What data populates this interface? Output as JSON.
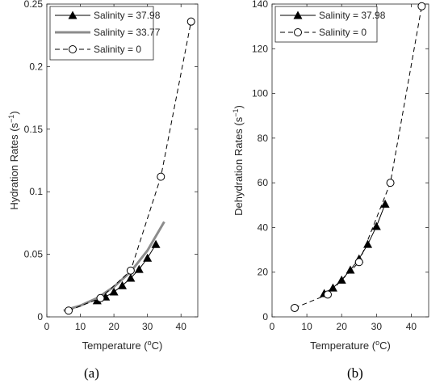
{
  "panel_labels": [
    "(a)",
    "(b)"
  ],
  "chart_data": [
    {
      "type": "line",
      "xlabel": "Temperature (°C)",
      "xlabel_base": "Temperature (",
      "xlabel_sup": "o",
      "xlabel_end": "C)",
      "ylabel": "Hydration Rates (s⁻¹)",
      "ylabel_base": "Hydration Rates (s",
      "ylabel_sup": "−1",
      "ylabel_end": ")",
      "xlim": [
        0,
        45
      ],
      "ylim": [
        0,
        0.25
      ],
      "xticks": [
        0,
        10,
        20,
        30,
        40
      ],
      "yticks": [
        0,
        0.05,
        0.1,
        0.15,
        0.2,
        0.25
      ],
      "ytick_labels": [
        "0",
        "0.05",
        "0.1",
        "0.15",
        "0.2",
        "0.25"
      ],
      "grid": false,
      "legend_position": "top-left",
      "series": [
        {
          "name": "Salinity = 37.98",
          "style": "solid-triangle",
          "x": [
            15,
            17.5,
            20,
            22.5,
            25,
            27.5,
            30,
            32.5
          ],
          "y": [
            0.013,
            0.016,
            0.02,
            0.025,
            0.031,
            0.038,
            0.047,
            0.058
          ]
        },
        {
          "name": "Salinity = 33.77",
          "style": "thick-gray",
          "x": [
            5,
            10,
            15,
            20,
            25,
            30,
            35
          ],
          "y": [
            0.005,
            0.009,
            0.015,
            0.024,
            0.036,
            0.053,
            0.076
          ]
        },
        {
          "name": "Salinity = 0",
          "style": "dashed-circle",
          "x": [
            6.5,
            16,
            25,
            34,
            43
          ],
          "y": [
            0.005,
            0.015,
            0.037,
            0.112,
            0.236
          ]
        }
      ]
    },
    {
      "type": "line",
      "xlabel": "Temperature (°C)",
      "xlabel_base": "Temperature (",
      "xlabel_sup": "o",
      "xlabel_end": "C)",
      "ylabel": "Dehydration Rates (s⁻¹)",
      "ylabel_base": "Dehydration Rates (s",
      "ylabel_sup": "−1",
      "ylabel_end": ")",
      "xlim": [
        0,
        45
      ],
      "ylim": [
        0,
        140
      ],
      "xticks": [
        0,
        10,
        20,
        30,
        40
      ],
      "yticks": [
        0,
        20,
        40,
        60,
        80,
        100,
        120,
        140
      ],
      "ytick_labels": [
        "0",
        "20",
        "40",
        "60",
        "80",
        "100",
        "120",
        "140"
      ],
      "grid": false,
      "legend_position": "top-left",
      "series": [
        {
          "name": "Salinity = 37.98",
          "style": "solid-triangle",
          "x": [
            15,
            17.5,
            20,
            22.5,
            25,
            27.5,
            30,
            32.5
          ],
          "y": [
            10.5,
            13,
            16.5,
            21,
            26,
            32.5,
            40.5,
            50.5
          ]
        },
        {
          "name": "Salinity = 0",
          "style": "dashed-circle",
          "x": [
            6.5,
            16,
            25,
            34,
            43
          ],
          "y": [
            4,
            10,
            24.5,
            60,
            139
          ]
        }
      ]
    }
  ]
}
